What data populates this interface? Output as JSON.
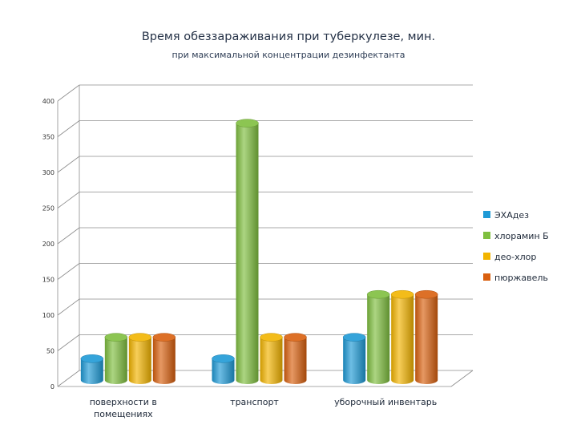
{
  "chart_data": {
    "type": "bar",
    "title": "Время обеззараживания при туберкулезе, мин.",
    "subtitle": "при максимальной концентрации дезинфектанта",
    "categories": [
      [
        "поверхности в",
        "помещениях"
      ],
      [
        "транспорт"
      ],
      [
        "уборочный инвентарь"
      ]
    ],
    "series": [
      {
        "name": "ЭХАдез",
        "values": [
          30,
          30,
          60
        ],
        "color": "#1f9ad6"
      },
      {
        "name": "хлорамин Б",
        "values": [
          60,
          360,
          120
        ],
        "color": "#7fbf3f"
      },
      {
        "name": "део-хлор",
        "values": [
          60,
          60,
          120
        ],
        "color": "#f2b400"
      },
      {
        "name": "пюржавель",
        "values": [
          60,
          60,
          120
        ],
        "color": "#d9600f"
      }
    ],
    "ylim": [
      0,
      400
    ],
    "yticks": [
      0,
      50,
      100,
      150,
      200,
      250,
      300,
      350,
      400
    ],
    "grid": true,
    "legend_position": "right"
  }
}
